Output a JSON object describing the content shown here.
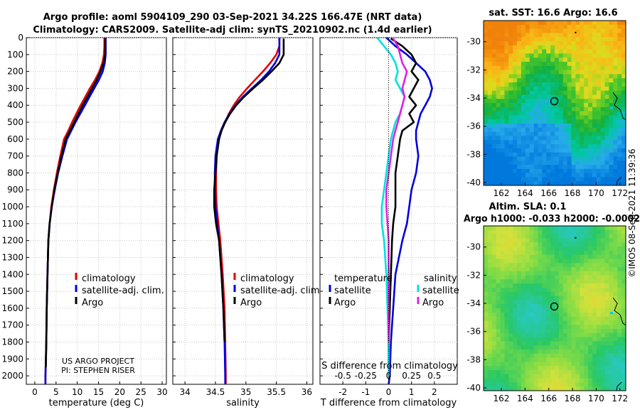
{
  "title_line1": "Argo profile: aoml 5904109_290 03-Sep-2021 34.22S 166.47E (NRT data)",
  "title_line2": "Climatology: CARS2009. Satellite-adj clim: synTS_20210902.nc (1.4d earlier)",
  "credit": "©IMOS 08-Sep-2021 11:39:36",
  "project_line1": "US ARGO PROJECT",
  "project_line2": "PI: STEPHEN RISER",
  "chart_data": [
    {
      "id": "temperature",
      "type": "line",
      "xlabel": "temperature (deg C)",
      "xlim": [
        -2,
        31
      ],
      "xticks": [
        0,
        5,
        10,
        15,
        20,
        25,
        30
      ],
      "xticklabels": [
        "0",
        "5",
        "10",
        "15",
        "20",
        "25",
        "30"
      ],
      "ylim": [
        2050,
        0
      ],
      "yticks": [
        0,
        100,
        200,
        300,
        400,
        500,
        600,
        700,
        800,
        900,
        1000,
        1100,
        1200,
        1300,
        1400,
        1500,
        1600,
        1700,
        1800,
        1900,
        2000
      ],
      "yticklabels": [
        "0",
        "100",
        "200",
        "300",
        "400",
        "500",
        "600",
        "700",
        "800",
        "900",
        "1000",
        "1100",
        "1200",
        "1300",
        "1400",
        "1500",
        "1600",
        "1700",
        "1800",
        "1900",
        "2000"
      ],
      "legend": [
        "climatology",
        "satellite-adj. clim.",
        "Argo"
      ],
      "series": [
        {
          "name": "climatology",
          "color": "#e00000",
          "x": [
            16.4,
            16.4,
            16.3,
            15.9,
            15.2,
            14.2,
            13.0,
            11.9,
            10.8,
            9.8,
            8.8,
            7.9,
            6.9,
            6.0,
            5.2,
            4.5,
            3.9,
            3.5,
            3.2,
            3.0,
            2.8,
            2.7,
            2.6,
            2.5,
            2.5
          ],
          "y": [
            0,
            50,
            100,
            150,
            200,
            250,
            300,
            350,
            400,
            450,
            500,
            550,
            600,
            700,
            800,
            900,
            1000,
            1100,
            1200,
            1400,
            1600,
            1800,
            1900,
            2000,
            2050
          ]
        },
        {
          "name": "satellite-adj. clim.",
          "color": "#0000dd",
          "x": [
            16.7,
            16.7,
            16.7,
            16.5,
            16.0,
            15.1,
            14.0,
            12.9,
            11.8,
            10.7,
            9.6,
            8.6,
            7.6,
            6.5,
            5.5,
            4.7,
            4.0,
            3.5,
            3.2,
            3.0,
            2.8,
            2.7,
            2.6,
            2.5,
            2.5
          ],
          "y": [
            0,
            50,
            100,
            150,
            200,
            250,
            300,
            350,
            400,
            450,
            500,
            550,
            600,
            700,
            800,
            900,
            1000,
            1100,
            1200,
            1400,
            1600,
            1800,
            1900,
            2000,
            2050
          ]
        },
        {
          "name": "Argo",
          "color": "#000000",
          "x": [
            16.6,
            16.6,
            16.6,
            16.2,
            15.5,
            14.6,
            13.5,
            12.4,
            11.3,
            10.3,
            9.3,
            8.3,
            7.3,
            6.3,
            5.4,
            4.6,
            4.0,
            3.5,
            3.2,
            3.0,
            2.8,
            2.7,
            2.6
          ],
          "y": [
            5,
            50,
            100,
            150,
            200,
            250,
            300,
            350,
            400,
            450,
            500,
            550,
            600,
            700,
            800,
            900,
            1000,
            1100,
            1200,
            1400,
            1600,
            1800,
            1950
          ]
        }
      ]
    },
    {
      "id": "salinity",
      "type": "line",
      "xlabel": "salinity",
      "xlim": [
        33.8,
        36.1
      ],
      "xticks": [
        34,
        34.5,
        35,
        35.5,
        36
      ],
      "xticklabels": [
        "34",
        "34.5",
        "35",
        "35.5",
        "36"
      ],
      "ylim": [
        2050,
        0
      ],
      "legend": [
        "climatology",
        "satellite-adj. clim.",
        "Argo"
      ],
      "series": [
        {
          "name": "climatology",
          "color": "#e00000",
          "x": [
            35.55,
            35.55,
            35.5,
            35.4,
            35.28,
            35.15,
            35.02,
            34.9,
            34.8,
            34.72,
            34.66,
            34.6,
            34.55,
            34.52,
            34.51,
            34.51,
            34.52,
            34.55,
            34.58,
            34.62,
            34.65,
            34.66,
            34.67,
            34.67
          ],
          "y": [
            0,
            50,
            100,
            150,
            200,
            250,
            300,
            350,
            400,
            450,
            500,
            550,
            600,
            700,
            800,
            900,
            1000,
            1100,
            1200,
            1400,
            1600,
            1800,
            2000,
            2050
          ]
        },
        {
          "name": "satellite-adj. clim.",
          "color": "#0000dd",
          "x": [
            35.55,
            35.55,
            35.55,
            35.48,
            35.38,
            35.25,
            35.1,
            34.95,
            34.83,
            34.73,
            34.65,
            34.59,
            34.54,
            34.5,
            34.49,
            34.49,
            34.5,
            34.53,
            34.56,
            34.6,
            34.63,
            34.65,
            34.66,
            34.66
          ],
          "y": [
            0,
            50,
            100,
            150,
            200,
            250,
            300,
            350,
            400,
            450,
            500,
            550,
            600,
            700,
            800,
            900,
            1000,
            1100,
            1200,
            1400,
            1600,
            1800,
            2000,
            2050
          ]
        },
        {
          "name": "Argo",
          "color": "#000000",
          "x": [
            35.62,
            35.62,
            35.62,
            35.55,
            35.42,
            35.28,
            35.12,
            34.97,
            34.84,
            34.74,
            34.66,
            34.6,
            34.56,
            34.52,
            34.5,
            34.48,
            34.48,
            34.51,
            34.56,
            34.6,
            34.63,
            34.65
          ],
          "y": [
            5,
            50,
            100,
            150,
            200,
            250,
            300,
            350,
            400,
            450,
            500,
            550,
            600,
            700,
            800,
            900,
            1000,
            1100,
            1200,
            1400,
            1600,
            1800
          ]
        }
      ]
    },
    {
      "id": "difference",
      "type": "line",
      "xlabel": "T difference from climatology",
      "xlabel2": "S difference from climatology",
      "xlim": [
        -3,
        3
      ],
      "xticks": [
        -2,
        -1,
        0,
        1,
        2
      ],
      "xticklabels": [
        "-2",
        "-1",
        "0",
        "1",
        "2"
      ],
      "sticks": [
        -2,
        -1,
        0,
        1,
        2
      ],
      "sticklabels": [
        "-0.5",
        "-0.25",
        "0",
        "0.25",
        "0.5"
      ],
      "ylim": [
        2050,
        0
      ],
      "legend_temperature": "temperature",
      "legend_salinity": "salinity",
      "legend": [
        "satellite",
        "Argo",
        "satellite",
        "Argo"
      ],
      "series": [
        {
          "name": "T satellite",
          "color": "#0000dd",
          "x": [
            -0.1,
            0.3,
            0.8,
            1.2,
            1.6,
            1.8,
            1.9,
            1.8,
            1.6,
            1.4,
            1.3,
            1.2,
            1.2,
            1.3,
            1.2,
            1.0,
            0.9,
            0.8,
            0.6,
            0.3,
            0.2,
            0.1,
            0.05,
            0.0
          ],
          "y": [
            0,
            50,
            100,
            150,
            200,
            250,
            300,
            350,
            400,
            450,
            500,
            550,
            600,
            700,
            800,
            900,
            1000,
            1100,
            1200,
            1400,
            1600,
            1800,
            2000,
            2050
          ]
        },
        {
          "name": "T Argo",
          "color": "#000000",
          "x": [
            0.1,
            0.6,
            1.0,
            1.2,
            1.0,
            1.3,
            1.1,
            0.9,
            1.2,
            0.9,
            1.1,
            0.6,
            0.5,
            0.4,
            0.3,
            0.3,
            0.3,
            0.2,
            0.15,
            0.1,
            0.05,
            0.0,
            0.0
          ],
          "y": [
            5,
            50,
            100,
            150,
            200,
            250,
            300,
            350,
            400,
            450,
            500,
            550,
            600,
            700,
            800,
            900,
            1000,
            1100,
            1200,
            1400,
            1600,
            1800,
            1950
          ]
        },
        {
          "name": "S satellite",
          "color": "#00e0e0",
          "x": [
            -0.5,
            -0.2,
            0.1,
            0.3,
            0.4,
            0.3,
            0.5,
            0.7,
            0.6,
            0.5,
            0.3,
            0.2,
            0.1,
            0.0,
            -0.1,
            -0.2,
            -0.3,
            -0.3,
            -0.2,
            -0.1,
            -0.05,
            0.0,
            0.0
          ],
          "y": [
            0,
            50,
            100,
            150,
            200,
            250,
            300,
            350,
            400,
            450,
            500,
            550,
            600,
            700,
            800,
            900,
            1000,
            1100,
            1200,
            1400,
            1600,
            1800,
            2000
          ]
        },
        {
          "name": "S Argo",
          "color": "#e020e0",
          "x": [
            0.2,
            0.4,
            0.5,
            0.6,
            0.8,
            0.7,
            0.6,
            0.7,
            0.6,
            0.5,
            0.4,
            0.3,
            0.2,
            0.1,
            0.0,
            -0.1,
            -0.1,
            -0.05,
            0.0,
            0.0,
            0.0,
            0.0
          ],
          "y": [
            5,
            50,
            100,
            150,
            200,
            250,
            300,
            350,
            400,
            450,
            500,
            550,
            600,
            700,
            800,
            900,
            1000,
            1100,
            1200,
            1400,
            1600,
            1800
          ]
        }
      ]
    },
    {
      "id": "sst_map",
      "type": "heatmap",
      "title": "sat. SST: 16.6 Argo: 16.6",
      "xlim": [
        160.5,
        172.5
      ],
      "ylim": [
        -40.2,
        -28.5
      ],
      "xticks": [
        162,
        164,
        166,
        168,
        170,
        172
      ],
      "xticklabels": [
        "162",
        "164",
        "166",
        "168",
        "170",
        "172"
      ],
      "yticks": [
        -30,
        -32,
        -34,
        -36,
        -38,
        -40
      ],
      "yticklabels": [
        "-30",
        "-32",
        "-34",
        "-36",
        "-38",
        "-40"
      ],
      "marker": {
        "lon": 166.47,
        "lat": -34.22
      }
    },
    {
      "id": "sla_map",
      "type": "heatmap",
      "title": "Altim. SLA: 0.1",
      "title2": "Argo h1000: -0.033 h2000: -0.0002",
      "xlim": [
        160.5,
        172.5
      ],
      "ylim": [
        -40.2,
        -28.5
      ],
      "xticks": [
        162,
        164,
        166,
        168,
        170,
        172
      ],
      "xticklabels": [
        "162",
        "164",
        "166",
        "168",
        "170",
        "172"
      ],
      "yticks": [
        -30,
        -32,
        -34,
        -36,
        -38,
        -40
      ],
      "yticklabels": [
        "-30",
        "-32",
        "-34",
        "-36",
        "-38",
        "-40"
      ],
      "marker": {
        "lon": 166.47,
        "lat": -34.22
      }
    }
  ]
}
